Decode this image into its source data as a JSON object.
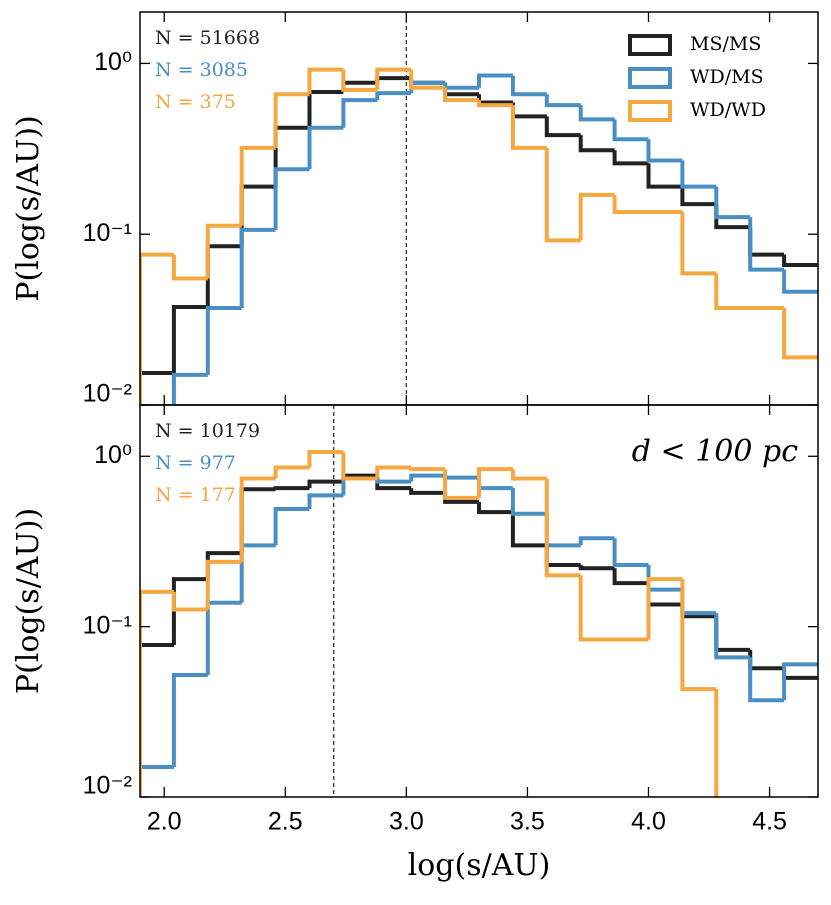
{
  "chart_data": [
    {
      "type": "histogram",
      "log_y": true,
      "legend": "upper right",
      "show_xticklabels": false,
      "ylabel": "P(log(s/AU))",
      "bins": [
        1.9,
        2.04,
        2.18,
        2.32,
        2.46,
        2.6,
        2.74,
        2.88,
        3.02,
        3.16,
        3.3,
        3.44,
        3.58,
        3.72,
        3.86,
        4.0,
        4.14,
        4.28,
        4.42,
        4.56,
        4.7
      ],
      "xlim": [
        1.9,
        4.7
      ],
      "ylim": [
        0.01,
        2
      ],
      "xticks": [
        2,
        2.5,
        3,
        3.5,
        4,
        4.5
      ],
      "yticks": [
        {
          "value": 1,
          "label": "10⁰"
        },
        {
          "value": 0.1,
          "label": "10⁻¹"
        },
        {
          "value": 0.01,
          "label": "10⁻²"
        }
      ],
      "vline": 3.0,
      "series": [
        {
          "name": "MS/MS",
          "color": "#222222",
          "values": [
            0.0154,
            0.0375,
            0.085,
            0.19,
            0.42,
            0.68,
            0.77,
            0.82,
            0.77,
            0.66,
            0.59,
            0.49,
            0.38,
            0.31,
            0.26,
            0.19,
            0.15,
            0.11,
            0.076,
            0.066
          ]
        },
        {
          "name": "WD/MS",
          "color": "#4a8fc4",
          "values": [
            0,
            0.015,
            0.037,
            0.106,
            0.24,
            0.42,
            0.61,
            0.67,
            0.77,
            0.72,
            0.85,
            0.66,
            0.57,
            0.47,
            0.36,
            0.27,
            0.19,
            0.126,
            0.062,
            0.046
          ]
        },
        {
          "name": "WD/WD",
          "color": "#f5a742",
          "values": [
            0.076,
            0.055,
            0.112,
            0.32,
            0.66,
            0.92,
            0.7,
            0.92,
            0.72,
            0.61,
            0.57,
            0.32,
            0.092,
            0.17,
            0.135,
            0.135,
            0.059,
            0.037,
            0.037,
            0.019
          ]
        }
      ],
      "annotations": [
        {
          "text": "N = 51668",
          "color": "#222222"
        },
        {
          "text": "N = 3085",
          "color": "#4a8fc4"
        },
        {
          "text": "N = 375",
          "color": "#f5a742"
        }
      ]
    },
    {
      "type": "histogram",
      "log_y": true,
      "show_xticklabels": true,
      "ylabel": "P(log(s/AU))",
      "xlabel": "log(s/AU)",
      "label": "d < 100 pc",
      "bins": [
        1.9,
        2.04,
        2.18,
        2.32,
        2.46,
        2.6,
        2.74,
        2.88,
        3.02,
        3.16,
        3.3,
        3.44,
        3.58,
        3.72,
        3.86,
        4.0,
        4.14,
        4.28,
        4.42,
        4.56,
        4.7
      ],
      "xlim": [
        1.9,
        4.7
      ],
      "ylim": [
        0.01,
        2
      ],
      "xticks": [
        {
          "value": 2,
          "label": "2.0"
        },
        2.5,
        {
          "value": 3,
          "label": "3.0"
        },
        3.5,
        {
          "value": 4,
          "label": "4.0"
        },
        4.5
      ],
      "yticks": [
        {
          "value": 1,
          "label": "10⁰"
        },
        {
          "value": 0.1,
          "label": "10⁻¹"
        },
        {
          "value": 0.01,
          "label": "10⁻²"
        }
      ],
      "vline": 2.7,
      "series": [
        {
          "name": "MS/MS",
          "color": "#222222",
          "values": [
            0.078,
            0.19,
            0.27,
            0.64,
            0.65,
            0.71,
            0.77,
            0.65,
            0.61,
            0.54,
            0.47,
            0.3,
            0.23,
            0.22,
            0.18,
            0.135,
            0.115,
            0.073,
            0.057,
            0.05
          ]
        },
        {
          "name": "WD/MS",
          "color": "#4a8fc4",
          "values": [
            0.015,
            0.052,
            0.138,
            0.3,
            0.49,
            0.59,
            0.74,
            0.71,
            0.77,
            0.75,
            0.65,
            0.46,
            0.3,
            0.33,
            0.23,
            0.165,
            0.12,
            0.066,
            0.037,
            0.06
          ]
        },
        {
          "name": "WD/WD",
          "color": "#f5a742",
          "values": [
            0.16,
            0.126,
            0.24,
            0.74,
            0.86,
            1.06,
            0.74,
            0.86,
            0.84,
            0.57,
            0.84,
            0.74,
            0.2,
            0.084,
            0.084,
            0.19,
            0.043,
            0,
            0,
            0
          ]
        }
      ],
      "annotations": [
        {
          "text": "N = 10179",
          "color": "#222222"
        },
        {
          "text": "N = 977",
          "color": "#4a8fc4"
        },
        {
          "text": "N = 177",
          "color": "#f5a742"
        }
      ]
    }
  ]
}
